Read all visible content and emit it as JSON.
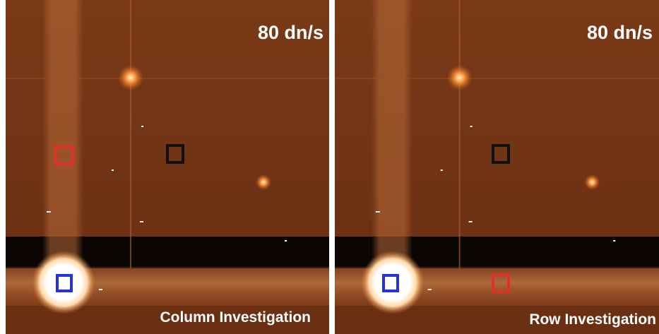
{
  "panels": [
    {
      "rate": "80 dn/s",
      "caption": "Column Investigation"
    },
    {
      "rate": "80 dn/s",
      "caption": "Row Investigation"
    }
  ]
}
